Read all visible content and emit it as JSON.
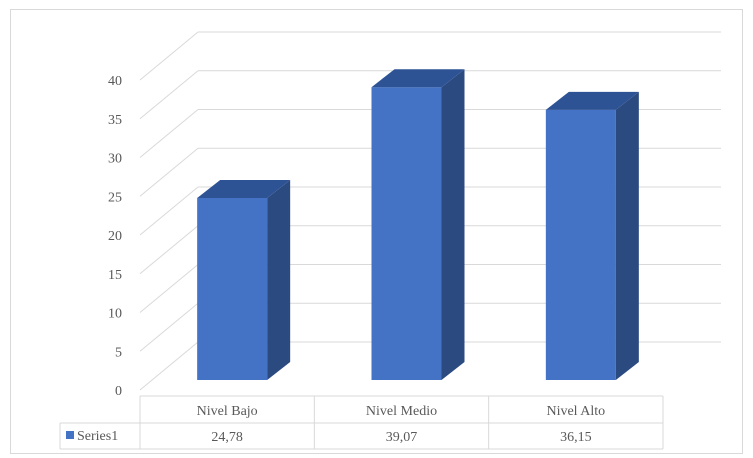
{
  "chart_data": {
    "type": "bar",
    "style": "3d-column-with-data-table",
    "categories": [
      "Nivel Bajo",
      "Nivel Medio",
      "Nivel Alto"
    ],
    "series": [
      {
        "name": "Series1",
        "values": [
          24.78,
          39.07,
          36.15
        ],
        "color": "#4472c4"
      }
    ],
    "value_labels": [
      "24,78",
      "39,07",
      "36,15"
    ],
    "ylim": [
      0,
      40
    ],
    "yticks": [
      0,
      5,
      10,
      15,
      20,
      25,
      30,
      35,
      40
    ],
    "grid": true,
    "legend": "data-table",
    "colors": {
      "bar_front": "#4472c4",
      "bar_side": "#2b4a80",
      "bar_top": "#2e5394",
      "grid": "#d9d9d9",
      "text": "#595959"
    }
  }
}
